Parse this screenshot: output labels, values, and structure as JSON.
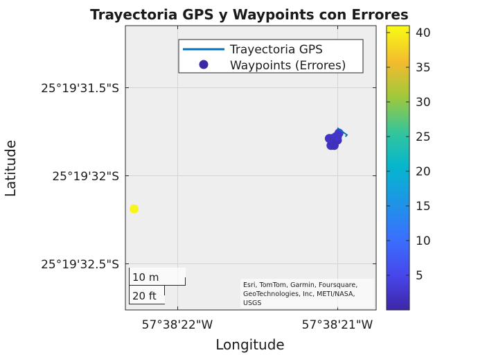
{
  "chart_data": {
    "type": "scatter",
    "title": "Trayectoria GPS y Waypoints con Errores",
    "xlabel": "Longitude",
    "ylabel": "Latitude",
    "x_ticks": [
      "57°38'22\"W",
      "57°38'21\"W"
    ],
    "y_ticks": [
      "25°19'31.5\"S",
      "25°19'32\"S",
      "25°19'32.5\"S"
    ],
    "legend": {
      "placement": "top-right",
      "entries": [
        "Trayectoria GPS",
        "Waypoints (Errores)"
      ]
    },
    "colorbar": {
      "range": [
        0,
        41
      ],
      "ticks": [
        "5",
        "10",
        "15",
        "20",
        "25",
        "30",
        "35",
        "40"
      ]
    },
    "scale_bar": {
      "metric": "10 m",
      "imperial": "20 ft"
    },
    "attribution": [
      "Esri, TomTom, Garmin, Foursquare,",
      "GeoTechnologies, Inc, METI/NASA,",
      "USGS"
    ],
    "grid": true,
    "track": [
      {
        "lon_s": 21.0,
        "lat_s": 31.73
      },
      {
        "lon_s": 20.97,
        "lat_s": 31.75
      },
      {
        "lon_s": 20.94,
        "lat_s": 31.77
      },
      {
        "lon_s": 20.95,
        "lat_s": 31.78
      }
    ],
    "waypoints": [
      {
        "lon_s": 22.27,
        "lat_s": 32.19,
        "error": 40.5
      },
      {
        "lon_s": 21.03,
        "lat_s": 31.79,
        "error": 1
      },
      {
        "lon_s": 21.0,
        "lat_s": 31.8,
        "error": 1.5
      },
      {
        "lon_s": 21.04,
        "lat_s": 31.83,
        "error": 2
      },
      {
        "lon_s": 20.99,
        "lat_s": 31.76,
        "error": 2.5
      },
      {
        "lon_s": 21.01,
        "lat_s": 31.78,
        "error": 3
      },
      {
        "lon_s": 21.03,
        "lat_s": 31.81,
        "error": 1
      },
      {
        "lon_s": 21.05,
        "lat_s": 31.79,
        "error": 2
      },
      {
        "lon_s": 21.02,
        "lat_s": 31.83,
        "error": 1.5
      },
      {
        "lon_s": 21.0,
        "lat_s": 31.78,
        "error": 2.2
      }
    ]
  }
}
